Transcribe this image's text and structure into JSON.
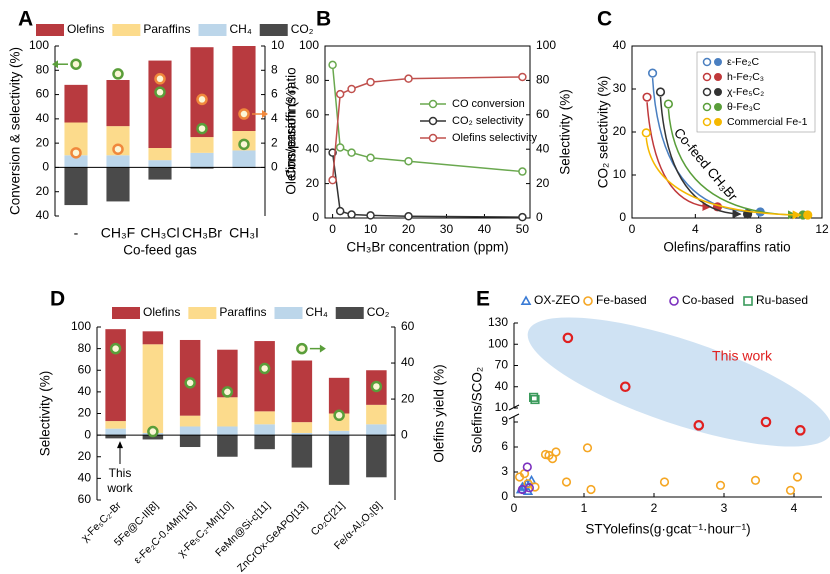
{
  "chart_data": [
    {
      "type": "bar",
      "label": "A",
      "ylabel": "Conversion & selectivity (%)",
      "y2label": "Olefins/paraffins ratio",
      "xlabel": "Co-feed gas",
      "categories": [
        "-",
        "CH₃F",
        "CH₃Cl",
        "CH₃Br",
        "CH₃I"
      ],
      "series": [
        {
          "name": "Olefins",
          "color": "#b83a3f",
          "values": [
            31,
            38,
            72,
            74,
            70
          ]
        },
        {
          "name": "Paraffins",
          "color": "#fcdb8c",
          "values": [
            27,
            24,
            10,
            13,
            16
          ]
        },
        {
          "name": "CH₄",
          "color": "#bcd6ea",
          "values": [
            10,
            10,
            6,
            12,
            14
          ]
        },
        {
          "name": "CO₂",
          "color": "#4a4a4a",
          "values": [
            -31,
            -28,
            -10,
            -1,
            -0.5
          ]
        },
        {
          "type": "scatter",
          "color": "#5a9e3a",
          "values": [
            85,
            77,
            62,
            32,
            19
          ]
        },
        {
          "type": "scatter",
          "color": "#f0883c",
          "axis": "y2",
          "values": [
            1.2,
            1.5,
            7.3,
            5.6,
            4.4
          ]
        }
      ],
      "ylim": [
        -40,
        100
      ],
      "yticks": [
        {
          "value": -40,
          "label": "40"
        },
        {
          "value": -20,
          "label": "20"
        },
        0,
        20,
        40,
        60,
        80,
        100
      ],
      "y2lim": [
        -4,
        10
      ],
      "y2ticks": [
        0,
        2,
        4,
        6,
        8,
        10
      ]
    },
    {
      "type": "line",
      "label": "B",
      "ylabel": "Conversion (%)",
      "y2label": "Selectivity (%)",
      "xlabel": "CH₃Br concentration (ppm)",
      "x": [
        0,
        2,
        5,
        10,
        20,
        50
      ],
      "series": [
        {
          "name": "CO conversion",
          "color": "#6aa84f",
          "values": [
            89,
            41,
            38,
            35,
            33,
            27
          ]
        },
        {
          "name": "CO₂ selectivity",
          "color": "#333333",
          "axis": "y2",
          "values": [
            38,
            4,
            2,
            1.5,
            1,
            0.5
          ]
        },
        {
          "name": "Olefins selectivity",
          "color": "#c0504d",
          "axis": "y2",
          "values": [
            22,
            72,
            75,
            79,
            81,
            82
          ]
        }
      ],
      "xlim": [
        -2,
        52
      ],
      "xticks": [
        0,
        10,
        20,
        30,
        40,
        50
      ],
      "ylim": [
        0,
        100
      ],
      "yticks": [
        0,
        20,
        40,
        60,
        80,
        100
      ],
      "y2lim": [
        0,
        100
      ],
      "y2ticks": [
        0,
        20,
        40,
        60,
        80,
        100
      ]
    },
    {
      "type": "scatter",
      "label": "C",
      "ylabel": "CO₂ selectivity (%)",
      "xlabel": "Olefins/paraffins ratio",
      "annotation": "Co-feed CH₃Br",
      "arrows": true,
      "series": [
        {
          "name": "ε-Fe₂C",
          "color": "#4a7fc1",
          "x": [
            1.3,
            8.1
          ],
          "values": [
            33.7,
            1.4
          ]
        },
        {
          "name": "h-Fe₇C₃",
          "color": "#c0393b",
          "x": [
            0.95,
            5.4
          ],
          "values": [
            28.1,
            2.6
          ]
        },
        {
          "name": "χ-Fe₅C₂",
          "color": "#333333",
          "x": [
            1.8,
            7.3
          ],
          "values": [
            29.3,
            0.9
          ]
        },
        {
          "name": "θ-Fe₃C",
          "color": "#5a9e3a",
          "x": [
            2.3,
            10.8
          ],
          "values": [
            26.5,
            0.7
          ]
        },
        {
          "name": "Commercial Fe-1",
          "color": "#f5b800",
          "x": [
            0.9,
            11.1
          ],
          "values": [
            19.8,
            0.7
          ]
        }
      ],
      "xlim": [
        0,
        12
      ],
      "xticks": [
        0,
        4,
        8,
        12
      ],
      "ylim": [
        0,
        40
      ],
      "yticks": [
        0,
        10,
        20,
        30,
        40
      ]
    },
    {
      "type": "bar",
      "label": "D",
      "ylabel": "Selectivity (%)",
      "y2label": "Olefins yield (%)",
      "annotation": [
        "This",
        "work"
      ],
      "categories": [
        "χ-Fe₅C₂-Br",
        "5Fe@C-II[8]",
        "ε-Fe₂C-0.4Mn[16]",
        "χ-Fe₅C₂-Mn[10]",
        "FeMn@Si-c[11]",
        "ZnCrOx-GeAPO[13]",
        "Co₂C[21]",
        "Fe/α-Al₂O₃[9]"
      ],
      "series": [
        {
          "name": "Olefins",
          "color": "#b83a3f",
          "values": [
            85,
            12,
            70,
            44,
            65,
            57,
            33,
            32
          ]
        },
        {
          "name": "Paraffins",
          "color": "#fcdb8c",
          "values": [
            7,
            82,
            10,
            27,
            12,
            10,
            16,
            18
          ]
        },
        {
          "name": "CH₄",
          "color": "#bcd6ea",
          "values": [
            6,
            2,
            8,
            8,
            10,
            2,
            4,
            10
          ]
        },
        {
          "name": "CO₂",
          "color": "#4a4a4a",
          "values": [
            -3,
            -4,
            -11,
            -20,
            -13,
            -30,
            -46,
            -39
          ]
        },
        {
          "type": "scatter",
          "color": "#5a9e3a",
          "axis": "y2",
          "values": [
            48,
            2,
            29,
            24,
            37,
            48,
            11,
            27
          ]
        }
      ],
      "ylim": [
        -60,
        100
      ],
      "yticks": [
        {
          "value": -60,
          "label": "60"
        },
        {
          "value": -40,
          "label": "40"
        },
        {
          "value": -20,
          "label": "20"
        },
        0,
        20,
        40,
        60,
        80,
        100
      ],
      "y2lim": [
        -36,
        60
      ],
      "y2ticks": [
        0,
        20,
        40,
        60
      ]
    },
    {
      "type": "scatter",
      "label": "E",
      "ylabel": "Solefins/SCO₂",
      "xlabel": "STYolefins(g·gcat⁻¹·hour⁻¹)",
      "annotation": "This work",
      "series": [
        {
          "name": "OX-ZEO",
          "color": "#3a7bd5",
          "marker": "triangle",
          "x": [
            0.1,
            0.15,
            0.18,
            0.2,
            0.25,
            0.12
          ],
          "values": [
            0.9,
            1.3,
            1.6,
            0.7,
            2.0,
            1.2
          ]
        },
        {
          "name": "Fe-based",
          "color": "#f5a623",
          "marker": "circle",
          "x": [
            0.08,
            0.15,
            0.2,
            0.45,
            0.5,
            0.55,
            0.6,
            0.75,
            1.05,
            1.1,
            2.15,
            2.95,
            3.45,
            3.95,
            4.05,
            0.3
          ],
          "values": [
            2.4,
            2.8,
            1.6,
            5.1,
            5.0,
            4.6,
            5.4,
            1.8,
            5.9,
            0.9,
            1.8,
            1.4,
            2.0,
            0.8,
            2.4,
            1.2
          ]
        },
        {
          "name": "Co-based",
          "color": "#7b2fbe",
          "marker": "circle",
          "x": [
            0.19,
            0.12,
            0.22
          ],
          "values": [
            3.6,
            0.9,
            1.1
          ]
        },
        {
          "name": "Ru-based",
          "color": "#3a9a5b",
          "marker": "square",
          "x": [
            0.28,
            0.3
          ],
          "values": [
            25,
            22
          ]
        },
        {
          "color": "#e02020",
          "marker": "circle",
          "x": [
            0.77,
            1.59,
            2.64,
            3.6,
            4.09
          ],
          "values": [
            109,
            40,
            8.6,
            9.0,
            8.0
          ]
        }
      ],
      "xlim": [
        0,
        4.4
      ],
      "xticks": [
        0,
        1,
        2,
        3,
        4
      ],
      "ylim": [
        0,
        130
      ],
      "y_break": [
        9.6,
        10
      ],
      "yticks": [
        0,
        3,
        6,
        9,
        10,
        40,
        70,
        100,
        130
      ]
    }
  ]
}
